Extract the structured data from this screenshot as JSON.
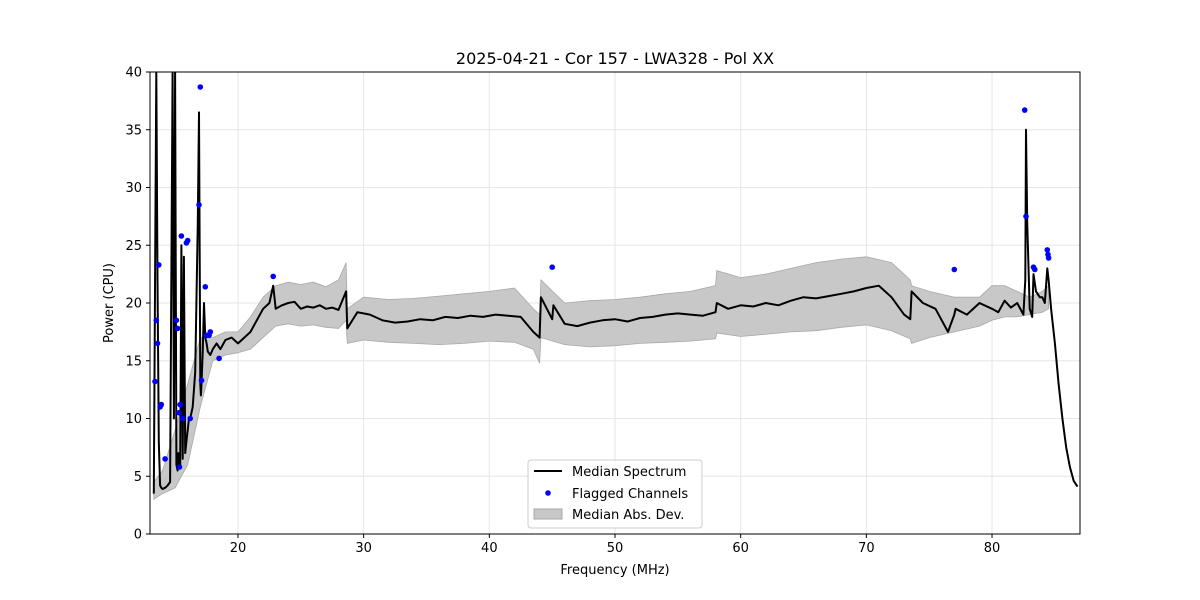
{
  "chart_data": {
    "type": "line",
    "title": "2025-04-21 - Cor 157 - LWA328 - Pol XX",
    "xlabel": "Frequency (MHz)",
    "ylabel": "Power (CPU)",
    "xlim": [
      13,
      87
    ],
    "ylim": [
      0,
      40
    ],
    "xticks": [
      20,
      30,
      40,
      50,
      60,
      70,
      80
    ],
    "yticks": [
      0,
      5,
      10,
      15,
      20,
      25,
      30,
      35,
      40
    ],
    "grid": true,
    "legend_position": "lower-center",
    "legend": [
      "Median Spectrum",
      "Flagged Channels",
      "Median Abs. Dev."
    ],
    "colors": {
      "median": "#000000",
      "flagged": "#0000ff",
      "mad_fill": "#c8c8c8",
      "mad_edge": "#a8a8a8"
    },
    "median_spectrum": {
      "x": [
        13.3,
        13.5,
        13.6,
        13.7,
        13.8,
        13.9,
        14.0,
        14.2,
        14.4,
        14.6,
        14.8,
        14.9,
        15.0,
        15.1,
        15.2,
        15.25,
        15.3,
        15.4,
        15.5,
        15.6,
        15.7,
        15.8,
        15.9,
        16.0,
        16.1,
        16.2,
        16.4,
        16.6,
        16.8,
        16.9,
        17.0,
        17.05,
        17.1,
        17.2,
        17.3,
        17.4,
        17.5,
        17.6,
        17.8,
        18.0,
        18.3,
        18.6,
        19.0,
        19.5,
        20.0,
        20.5,
        21.0,
        21.5,
        22.0,
        22.5,
        22.8,
        23.0,
        23.5,
        24.0,
        24.5,
        25.0,
        25.5,
        26.0,
        26.5,
        27.0,
        27.5,
        28.0,
        28.6,
        28.7,
        29.5,
        30.5,
        31.5,
        32.5,
        33.5,
        34.5,
        35.5,
        36.5,
        37.5,
        38.5,
        39.5,
        40.5,
        41.5,
        42.5,
        43.5,
        44.0,
        44.1,
        45.0,
        45.1,
        46.0,
        47.0,
        48.0,
        49.0,
        50.0,
        51.0,
        52.0,
        53.0,
        54.0,
        55.0,
        56.0,
        57.0,
        58.0,
        58.1,
        59.0,
        60.0,
        61.0,
        62.0,
        63.0,
        64.0,
        65.0,
        66.0,
        67.0,
        68.0,
        69.0,
        70.0,
        71.0,
        72.0,
        73.0,
        73.5,
        73.6,
        74.5,
        75.5,
        76.5,
        77.0,
        77.1,
        78.0,
        79.0,
        80.0,
        80.5,
        81.0,
        81.5,
        82.0,
        82.5,
        82.65,
        82.7,
        82.8,
        83.0,
        83.2,
        83.3,
        83.5,
        83.8,
        84.0,
        84.2,
        84.4,
        84.5,
        84.7,
        85.0,
        85.3,
        85.6,
        85.9,
        86.2,
        86.5,
        86.8
      ],
      "y": [
        3.5,
        40,
        22,
        8,
        4.2,
        4.0,
        3.9,
        4.0,
        4.2,
        4.5,
        40,
        10,
        40,
        6,
        5.5,
        7,
        5.8,
        6.0,
        25,
        6.5,
        24,
        7.0,
        8.0,
        9.0,
        10,
        10,
        11,
        14,
        27,
        36.5,
        13,
        12,
        13,
        16,
        20,
        17,
        16.5,
        15.8,
        15.5,
        16,
        16.5,
        16,
        16.8,
        17,
        16.5,
        17,
        17.5,
        18.5,
        19.5,
        20,
        21.5,
        19.5,
        19.8,
        20,
        20.1,
        19.5,
        19.7,
        19.6,
        19.8,
        19.5,
        19.6,
        19.4,
        21,
        17.8,
        19.2,
        19.0,
        18.5,
        18.3,
        18.4,
        18.6,
        18.5,
        18.8,
        18.7,
        18.9,
        18.8,
        19.0,
        18.9,
        18.8,
        17.5,
        17.0,
        20.5,
        18.6,
        19.8,
        18.2,
        18.0,
        18.3,
        18.5,
        18.6,
        18.4,
        18.7,
        18.8,
        19.0,
        19.1,
        19.0,
        18.9,
        19.2,
        20.0,
        19.5,
        19.8,
        19.7,
        20.0,
        19.8,
        20.2,
        20.5,
        20.4,
        20.6,
        20.8,
        21.0,
        21.3,
        21.5,
        20.5,
        19.0,
        18.6,
        21.0,
        20.0,
        19.5,
        17.5,
        19.0,
        19.5,
        19.0,
        20.0,
        19.5,
        19.2,
        20.2,
        19.6,
        20.0,
        19.0,
        22.0,
        35,
        27,
        19.5,
        18.8,
        22.5,
        21.0,
        20.5,
        20.5,
        20.0,
        23.0,
        22.0,
        19.5,
        16.5,
        13.0,
        10.0,
        7.5,
        5.8,
        4.6,
        4.1
      ]
    },
    "mad_band": {
      "x": [
        13.3,
        14.0,
        15.0,
        16.0,
        17.0,
        18.0,
        19.0,
        20.0,
        21.0,
        22.0,
        23.0,
        24.0,
        25.0,
        26.0,
        27.0,
        28.0,
        28.6,
        28.7,
        30.0,
        32.0,
        34.0,
        36.0,
        38.0,
        40.0,
        42.0,
        43.5,
        44.0,
        44.1,
        46.0,
        48.0,
        50.0,
        52.0,
        54.0,
        56.0,
        58.0,
        58.1,
        60.0,
        62.0,
        64.0,
        66.0,
        68.0,
        70.0,
        72.0,
        73.5,
        73.6,
        75.0,
        77.0,
        79.0,
        80.0,
        81.0,
        82.0,
        83.0,
        84.0,
        84.5
      ],
      "upper": [
        4.5,
        5.5,
        9,
        13,
        17,
        17,
        17.5,
        17.5,
        18.8,
        20.5,
        21.5,
        21.8,
        21.6,
        21.8,
        21.4,
        22.0,
        23.5,
        19.5,
        20.5,
        20.3,
        20.4,
        20.6,
        20.8,
        21.0,
        21.3,
        19.5,
        19.0,
        22.0,
        20.0,
        20.2,
        20.3,
        20.5,
        20.8,
        21.0,
        21.5,
        22.8,
        22.2,
        22.5,
        23.0,
        23.5,
        23.8,
        24.0,
        23.5,
        22.0,
        21.5,
        21.0,
        20.5,
        20.5,
        21.5,
        21.5,
        21.0,
        20.5,
        21.0,
        21.5
      ],
      "lower": [
        3.0,
        3.5,
        4.0,
        6.0,
        11,
        15,
        15.5,
        15.7,
        16.0,
        17.0,
        18.0,
        18.2,
        18.0,
        18.1,
        17.9,
        17.8,
        18.5,
        16.5,
        16.8,
        16.6,
        16.5,
        16.4,
        16.5,
        16.7,
        16.6,
        16.0,
        14.8,
        17.0,
        16.4,
        16.2,
        16.3,
        16.5,
        16.6,
        16.7,
        16.9,
        17.4,
        17.1,
        17.3,
        17.5,
        17.6,
        17.9,
        18.1,
        17.6,
        16.9,
        16.5,
        17.0,
        17.5,
        18.0,
        18.5,
        18.8,
        18.8,
        19.0,
        19.2,
        19.5
      ]
    },
    "flagged_channels": {
      "x": [
        13.4,
        13.5,
        13.6,
        13.7,
        13.8,
        13.9,
        14.2,
        15.1,
        15.2,
        15.3,
        15.35,
        15.4,
        15.5,
        15.6,
        15.9,
        16.0,
        16.2,
        16.9,
        17.0,
        17.1,
        17.4,
        17.5,
        17.7,
        17.8,
        18.5,
        22.8,
        45.0,
        77.0,
        82.6,
        82.7,
        83.3,
        83.4,
        84.4,
        84.45,
        84.5
      ],
      "y": [
        13.2,
        18.5,
        16.5,
        23.3,
        11.0,
        11.2,
        6.5,
        18.5,
        17.8,
        10.5,
        5.8,
        11.2,
        25.8,
        10.0,
        25.2,
        25.4,
        10.0,
        28.5,
        38.7,
        13.3,
        21.4,
        17.2,
        17.2,
        17.5,
        15.2,
        22.3,
        23.1,
        22.9,
        36.7,
        27.5,
        23.1,
        22.9,
        24.6,
        24.2,
        23.9
      ]
    }
  }
}
